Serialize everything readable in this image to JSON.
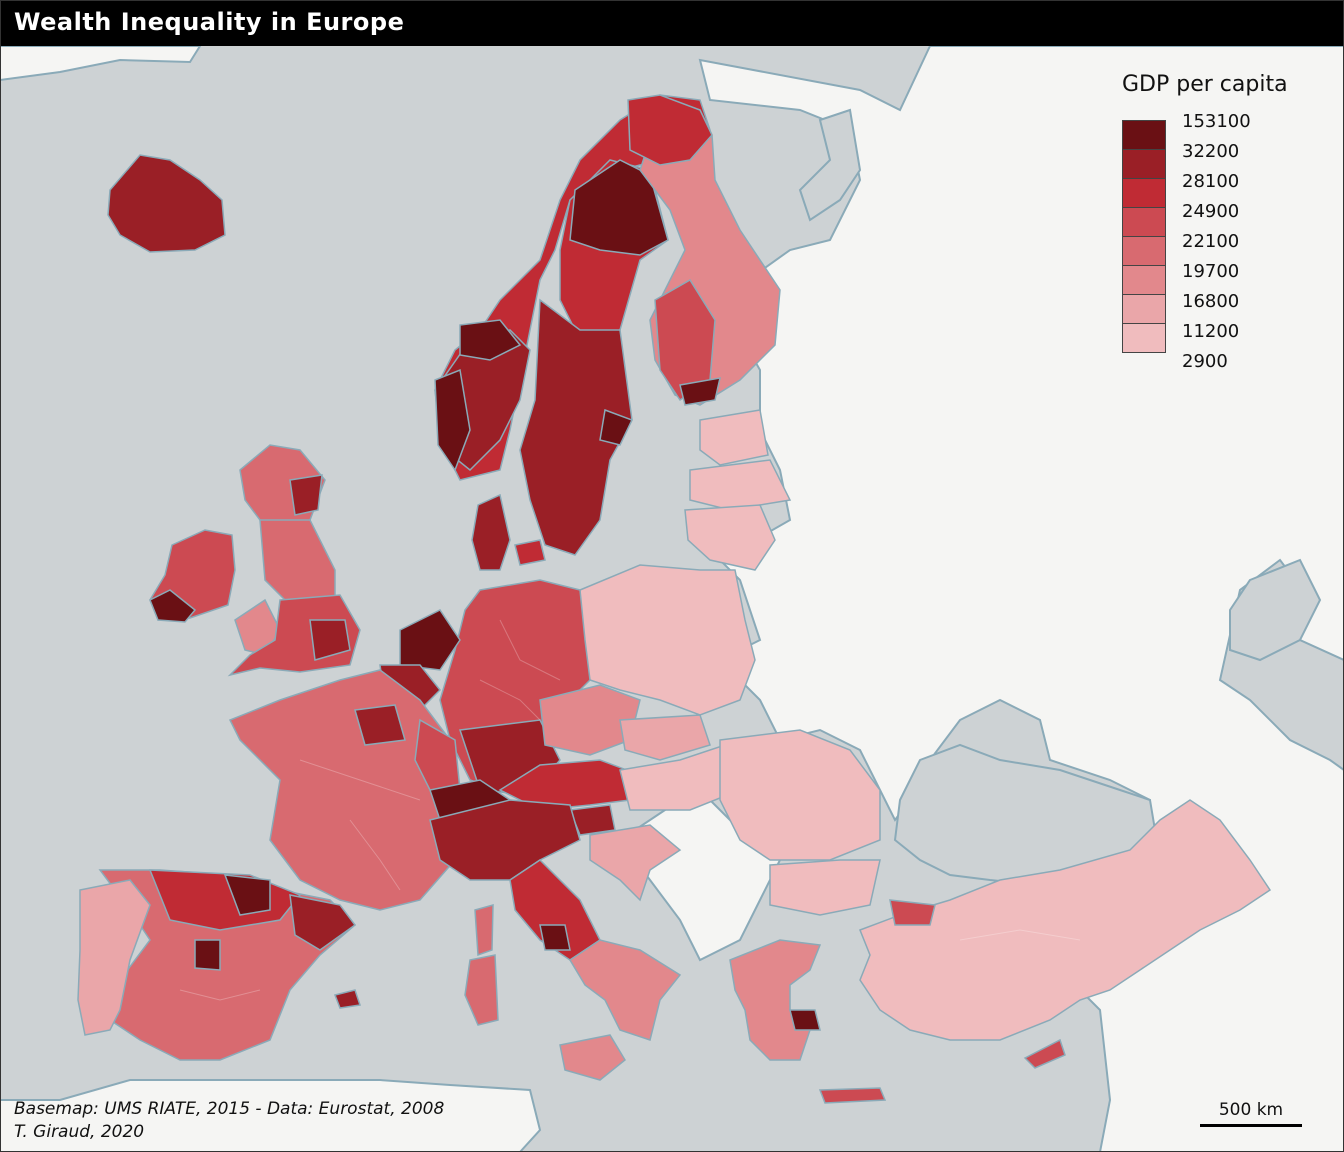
{
  "title": "Wealth Inequality in Europe",
  "legend": {
    "title": "GDP per capita",
    "breaks": [
      "153100",
      "32200",
      "28100",
      "24900",
      "22100",
      "19700",
      "16800",
      "11200",
      "2900"
    ],
    "colors": [
      "#6a1014",
      "#9a1f26",
      "#c02b34",
      "#cc4a52",
      "#d86a70",
      "#e2888c",
      "#eaa6a9",
      "#f0bcbe"
    ]
  },
  "source": {
    "line1": "Basemap: UMS RIATE, 2015 - Data: Eurostat, 2008",
    "line2": "T. Giraud, 2020"
  },
  "scalebar": {
    "label": "500 km"
  },
  "colors": {
    "sea": "#cdd2d4",
    "land_nodata": "#f5f5f3",
    "coast": "#8aaab8",
    "titlebar": "#000000"
  }
}
